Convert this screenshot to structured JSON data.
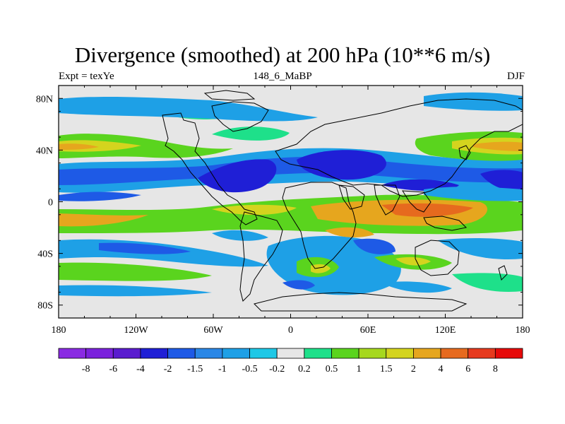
{
  "figure": {
    "title": "Divergence (smoothed) at 200 hPa (10**6 m/s)",
    "left_label": "Expt = texYe",
    "center_label": "148_6_MaBP",
    "right_label": "DJF"
  },
  "map": {
    "lon_range": [
      -180,
      180
    ],
    "lat_range": [
      -90,
      90
    ],
    "x_ticks": [
      {
        "lon": -180,
        "label": "180"
      },
      {
        "lon": -120,
        "label": "120W"
      },
      {
        "lon": -60,
        "label": "60W"
      },
      {
        "lon": 0,
        "label": "0"
      },
      {
        "lon": 60,
        "label": "60E"
      },
      {
        "lon": 120,
        "label": "120E"
      },
      {
        "lon": 180,
        "label": "180"
      }
    ],
    "y_ticks": [
      {
        "lat": 80,
        "label": "80N"
      },
      {
        "lat": 40,
        "label": "40N"
      },
      {
        "lat": 0,
        "label": "0"
      },
      {
        "lat": -40,
        "label": "40S"
      },
      {
        "lat": -80,
        "label": "80S"
      }
    ],
    "background_color": "#e6e6e6",
    "coastline_color": "#000000"
  },
  "colorbar": {
    "colors": [
      "#8a2be2",
      "#7b22dc",
      "#5a1ccf",
      "#1f1fd6",
      "#1e5ae6",
      "#2a87e6",
      "#1ea0e6",
      "#1ec8e6",
      "#e6e6e6",
      "#1ee08a",
      "#5ad41e",
      "#a6d81e",
      "#d4d41e",
      "#e6a61e",
      "#e66a1e",
      "#e63a1e",
      "#e60a0a"
    ],
    "labels": [
      "-8",
      "-6",
      "-4",
      "-2",
      "-1.5",
      "-1",
      "-0.5",
      "-0.2",
      "0.2",
      "0.5",
      "1",
      "1.5",
      "2",
      "4",
      "6",
      "8"
    ]
  }
}
